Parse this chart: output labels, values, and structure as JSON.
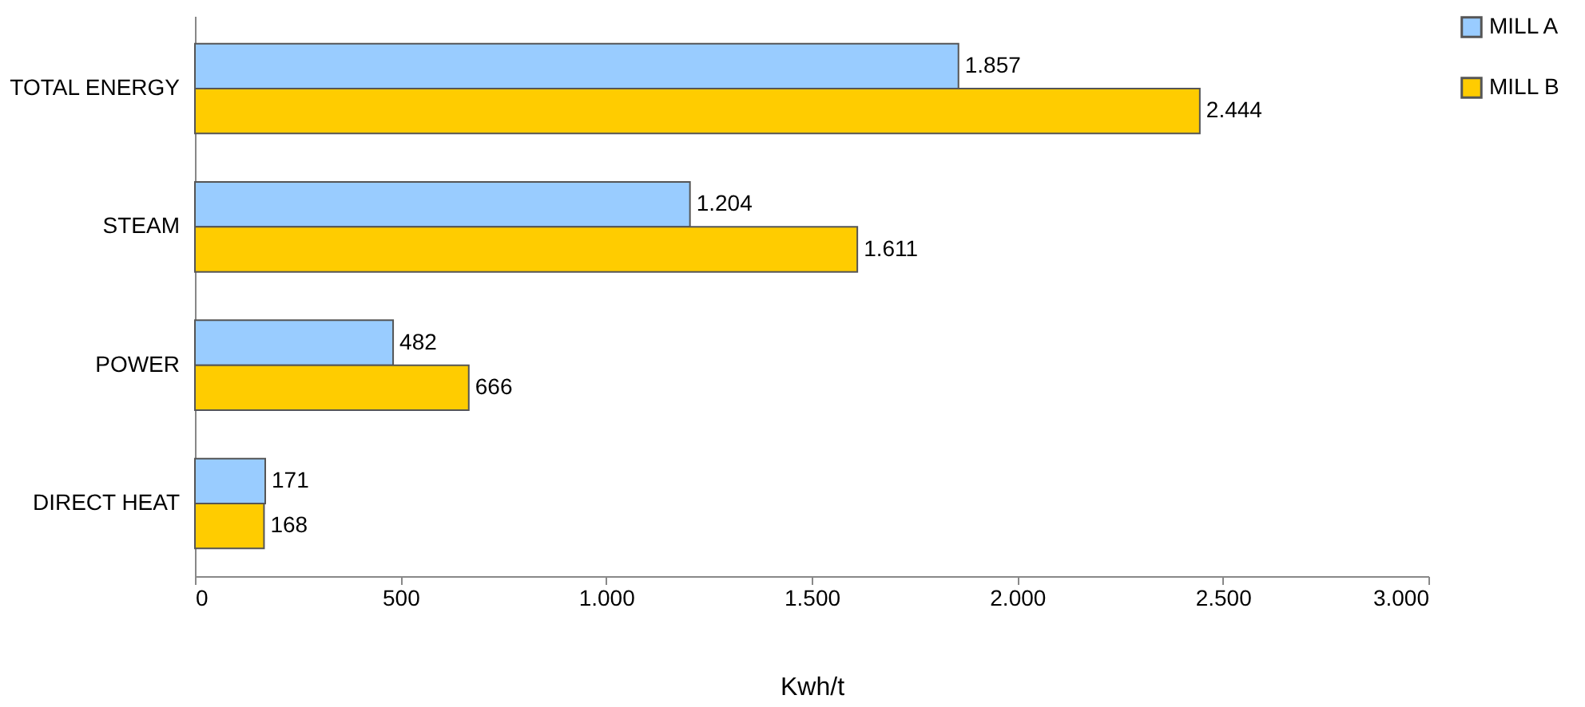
{
  "chart_data": {
    "type": "bar",
    "orientation": "horizontal",
    "xlabel": "Kwh/t",
    "categories": [
      "TOTAL ENERGY",
      "STEAM",
      "POWER",
      "DIRECT HEAT"
    ],
    "series": [
      {
        "name": "MILL A",
        "color": "#99ccff",
        "values": [
          1857,
          1204,
          482,
          171
        ],
        "value_labels": [
          "1.857",
          "1.204",
          "482",
          "171"
        ]
      },
      {
        "name": "MILL B",
        "color": "#ffcc00",
        "values": [
          2444,
          1611,
          666,
          168
        ],
        "value_labels": [
          "2.444",
          "1.611",
          "666",
          "168"
        ]
      }
    ],
    "xlim": [
      0,
      3000
    ],
    "xticks": [
      0,
      500,
      {
        "value": 1000,
        "label": "1.000"
      },
      {
        "value": 1500,
        "label": "1.500"
      },
      {
        "value": 2000,
        "label": "2.000"
      },
      {
        "value": 2500,
        "label": "2.500"
      },
      {
        "value": 3000,
        "label": "3.000"
      }
    ],
    "grid": false,
    "legend": "right"
  }
}
